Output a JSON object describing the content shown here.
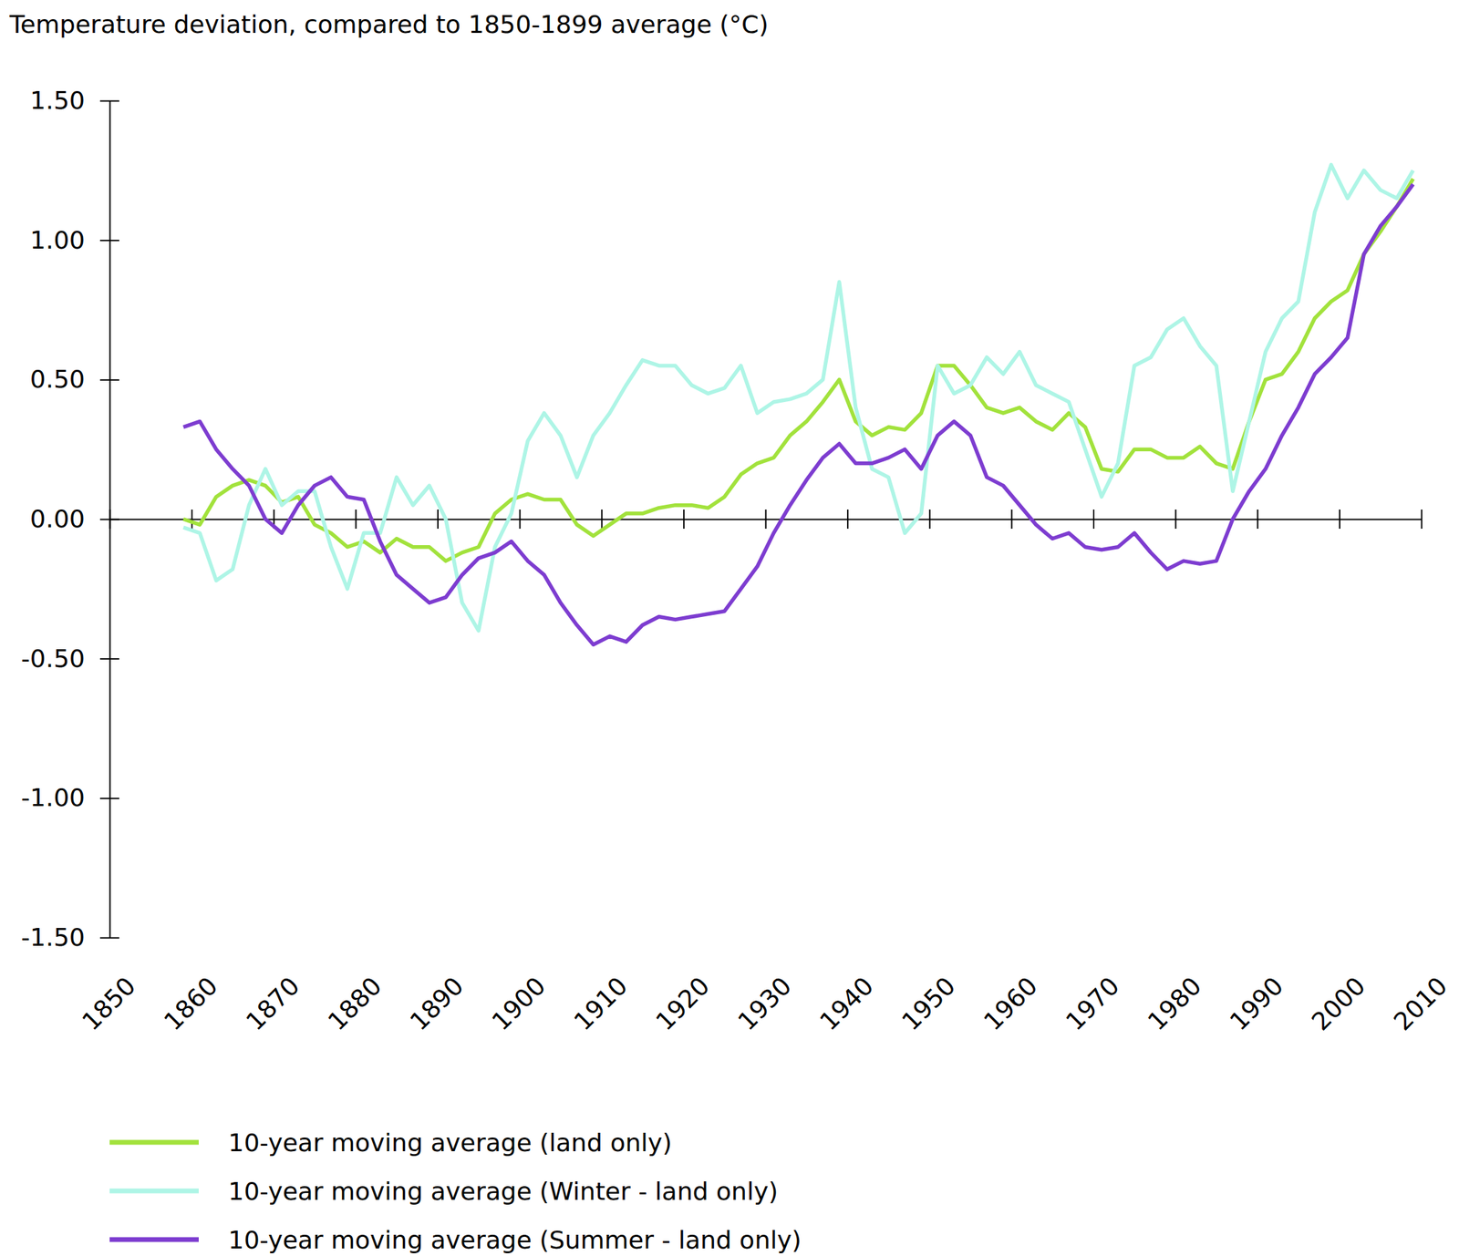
{
  "chart_data": {
    "type": "line",
    "title": "Temperature deviation, compared to 1850-1899 average (°C)",
    "x": [
      1859,
      1861,
      1863,
      1865,
      1867,
      1869,
      1871,
      1873,
      1875,
      1877,
      1879,
      1881,
      1883,
      1885,
      1887,
      1889,
      1891,
      1893,
      1895,
      1897,
      1899,
      1901,
      1903,
      1905,
      1907,
      1909,
      1911,
      1913,
      1915,
      1917,
      1919,
      1921,
      1923,
      1925,
      1927,
      1929,
      1931,
      1933,
      1935,
      1937,
      1939,
      1941,
      1943,
      1945,
      1947,
      1949,
      1951,
      1953,
      1955,
      1957,
      1959,
      1961,
      1963,
      1965,
      1967,
      1969,
      1971,
      1973,
      1975,
      1977,
      1979,
      1981,
      1983,
      1985,
      1987,
      1989,
      1991,
      1993,
      1995,
      1997,
      1999,
      2001,
      2003,
      2005,
      2007,
      2009
    ],
    "series": [
      {
        "name": "10-year moving average (land only)",
        "color": "#a2e23c",
        "values": [
          0.0,
          -0.02,
          0.08,
          0.12,
          0.14,
          0.12,
          0.06,
          0.08,
          -0.02,
          -0.05,
          -0.1,
          -0.08,
          -0.12,
          -0.07,
          -0.1,
          -0.1,
          -0.15,
          -0.12,
          -0.1,
          0.02,
          0.07,
          0.09,
          0.07,
          0.07,
          -0.02,
          -0.06,
          -0.02,
          0.02,
          0.02,
          0.04,
          0.05,
          0.05,
          0.04,
          0.08,
          0.16,
          0.2,
          0.22,
          0.3,
          0.35,
          0.42,
          0.5,
          0.35,
          0.3,
          0.33,
          0.32,
          0.38,
          0.55,
          0.55,
          0.48,
          0.4,
          0.38,
          0.4,
          0.35,
          0.32,
          0.38,
          0.33,
          0.18,
          0.17,
          0.25,
          0.25,
          0.22,
          0.22,
          0.26,
          0.2,
          0.18,
          0.35,
          0.5,
          0.52,
          0.6,
          0.72,
          0.78,
          0.82,
          0.95,
          1.03,
          1.12,
          1.22
        ]
      },
      {
        "name": "10-year moving average (Winter - land only)",
        "color": "#aef5e6",
        "values": [
          -0.03,
          -0.05,
          -0.22,
          -0.18,
          0.05,
          0.18,
          0.05,
          0.1,
          0.1,
          -0.1,
          -0.25,
          -0.05,
          -0.05,
          0.15,
          0.05,
          0.12,
          0.0,
          -0.3,
          -0.4,
          -0.1,
          0.02,
          0.28,
          0.38,
          0.3,
          0.15,
          0.3,
          0.38,
          0.48,
          0.57,
          0.55,
          0.55,
          0.48,
          0.45,
          0.47,
          0.55,
          0.38,
          0.42,
          0.43,
          0.45,
          0.5,
          0.85,
          0.4,
          0.18,
          0.15,
          -0.05,
          0.02,
          0.55,
          0.45,
          0.48,
          0.58,
          0.52,
          0.6,
          0.48,
          0.45,
          0.42,
          0.25,
          0.08,
          0.2,
          0.55,
          0.58,
          0.68,
          0.72,
          0.62,
          0.55,
          0.1,
          0.35,
          0.6,
          0.72,
          0.78,
          1.1,
          1.27,
          1.15,
          1.25,
          1.18,
          1.15,
          1.25
        ]
      },
      {
        "name": "10-year moving average (Summer - land only)",
        "color": "#7d3cd0",
        "values": [
          0.33,
          0.35,
          0.25,
          0.18,
          0.12,
          0.0,
          -0.05,
          0.05,
          0.12,
          0.15,
          0.08,
          0.07,
          -0.08,
          -0.2,
          -0.25,
          -0.3,
          -0.28,
          -0.2,
          -0.14,
          -0.12,
          -0.08,
          -0.15,
          -0.2,
          -0.3,
          -0.38,
          -0.45,
          -0.42,
          -0.44,
          -0.38,
          -0.35,
          -0.36,
          -0.35,
          -0.34,
          -0.33,
          -0.25,
          -0.17,
          -0.05,
          0.05,
          0.14,
          0.22,
          0.27,
          0.2,
          0.2,
          0.22,
          0.25,
          0.18,
          0.3,
          0.35,
          0.3,
          0.15,
          0.12,
          0.05,
          -0.02,
          -0.07,
          -0.05,
          -0.1,
          -0.11,
          -0.1,
          -0.05,
          -0.12,
          -0.18,
          -0.15,
          -0.16,
          -0.15,
          0.0,
          0.1,
          0.18,
          0.3,
          0.4,
          0.52,
          0.58,
          0.65,
          0.95,
          1.05,
          1.12,
          1.2
        ]
      }
    ],
    "xlim": [
      1850,
      2010
    ],
    "xticks": [
      1850,
      1860,
      1870,
      1880,
      1890,
      1900,
      1910,
      1920,
      1930,
      1940,
      1950,
      1960,
      1970,
      1980,
      1990,
      2000,
      2010
    ],
    "ylim": [
      -1.5,
      1.5
    ],
    "yticks": [
      {
        "value": -1.5,
        "label": "-1.50"
      },
      {
        "value": -1.0,
        "label": "-1.00"
      },
      {
        "value": -0.5,
        "label": "-0.50"
      },
      {
        "value": 0,
        "label": "0.00"
      },
      {
        "value": 0.5,
        "label": "0.50"
      },
      {
        "value": 1.0,
        "label": "1.00"
      },
      {
        "value": 1.5,
        "label": "1.50"
      }
    ],
    "grid": false,
    "legend": "bottom"
  }
}
